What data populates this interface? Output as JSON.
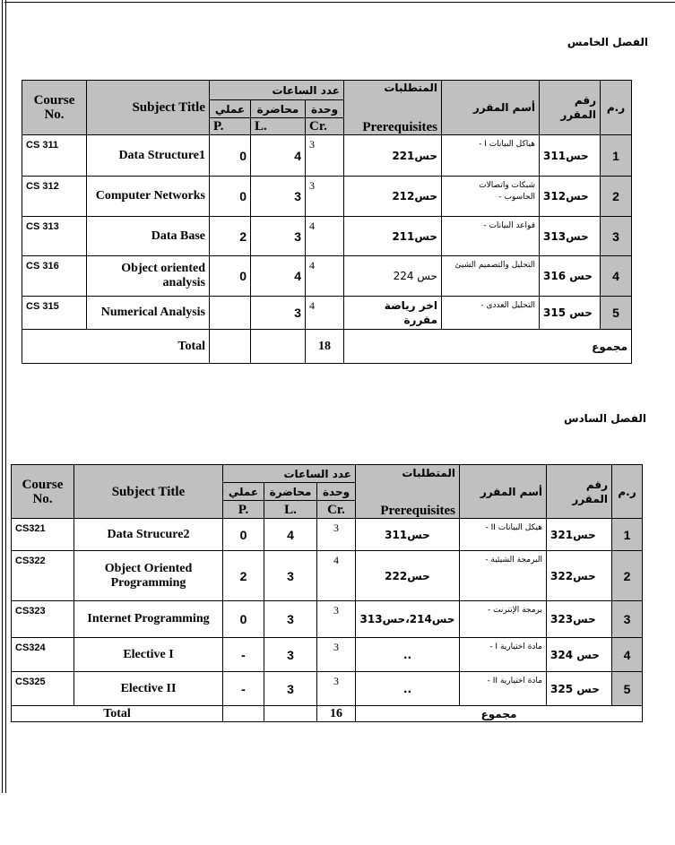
{
  "colors": {
    "header_bg": "#c0c0c0",
    "border": "#000000"
  },
  "semester5": {
    "title": "الفصل الخامس",
    "headers": {
      "course_no": "Course No.",
      "subject_title": "Subject Title",
      "hours": "عدد الساعات",
      "practical_ar": "عملي",
      "lecture_ar": "محاضرة",
      "credit_ar": "وحدة",
      "p": "P.",
      "l": "L.",
      "cr": "Cr.",
      "prereq_ar": "المتطلبات",
      "prereq": "Prerequisites",
      "name_ar": "أسم المقرر",
      "code_ar": "رقم المقرر",
      "index": "ر.م"
    },
    "rows": [
      {
        "course_no": "CS 311",
        "title": "Data Structure1",
        "p": "0",
        "l": "4",
        "cr": "3",
        "prereq": "حس221",
        "name_ar": "هياكل البيانات I -",
        "code_ar": "حس311",
        "index": "1"
      },
      {
        "course_no": "CS 312",
        "title": "Computer Networks",
        "p": "0",
        "l": "3",
        "cr": "3",
        "prereq": "حس212",
        "name_ar": "شبكات واتصالات الحاسوب -",
        "code_ar": "حس312",
        "index": "2"
      },
      {
        "course_no": "CS 313",
        "title": "Data Base",
        "p": "2",
        "l": "3",
        "cr": "4",
        "prereq": "حس211",
        "name_ar": "قواعد البيانات -",
        "code_ar": "حس313",
        "index": "3"
      },
      {
        "course_no": "CS 316",
        "title": "Object oriented analysis",
        "p": "0",
        "l": "4",
        "cr": "4",
        "prereq": "حس 224",
        "name_ar": "التحليل والتصميم الشيئ",
        "code_ar": "حس 316",
        "index": "4"
      },
      {
        "course_no": "CS 315",
        "title": "Numerical Analysis",
        "p": "",
        "l": "3",
        "cr": "4",
        "prereq": "اخر رياضة مقررة",
        "name_ar": "التحليل العددى -",
        "code_ar": "حس 315",
        "index": "5"
      }
    ],
    "total": {
      "label": "Total",
      "cr": "18",
      "label_ar": "مجموع"
    }
  },
  "semester6": {
    "title": "الفصل السادس",
    "headers": {
      "course_no": "Course No.",
      "subject_title": "Subject Title",
      "hours": "عدد الساعات",
      "practical_ar": "عملي",
      "lecture_ar": "محاضرة",
      "credit_ar": "وحدة",
      "p": "P.",
      "l": "L.",
      "cr": "Cr.",
      "prereq_ar": "المتطلبات",
      "prereq": "Prerequisites",
      "name_ar": "أسم المقرر",
      "code_ar": "رقم المقرر",
      "index": "ر.م"
    },
    "rows": [
      {
        "course_no": "CS321",
        "title": "Data Strucure2",
        "p": "0",
        "l": "4",
        "cr": "3",
        "prereq": "حس311",
        "name_ar": "هيكل البيانات II -",
        "code_ar": "حس321",
        "index": "1"
      },
      {
        "course_no": "CS322",
        "title": "Object Oriented Programming",
        "p": "2",
        "l": "3",
        "cr": "4",
        "prereq": "حس222",
        "name_ar": "البرمجة الشيئية -",
        "code_ar": "حس322",
        "index": "2"
      },
      {
        "course_no": "CS323",
        "title": "Internet Programming",
        "p": "0",
        "l": "3",
        "cr": "3",
        "prereq": "حس214،حس313",
        "name_ar": "برمجة الإنترنت -",
        "code_ar": "حس323",
        "index": "3"
      },
      {
        "course_no": "CS324",
        "title": "Elective I",
        "p": "-",
        "l": "3",
        "cr": "3",
        "prereq": "..",
        "name_ar": "مادة اختيارية I -",
        "code_ar": "حس 324",
        "index": "4"
      },
      {
        "course_no": "CS325",
        "title": "Elective II",
        "p": "-",
        "l": "3",
        "cr": "3",
        "prereq": "..",
        "name_ar": "مادة اختيارية II -",
        "code_ar": "حس 325",
        "index": "5"
      }
    ],
    "total": {
      "label": "Total",
      "cr": "16",
      "label_ar": "مجموع"
    }
  }
}
